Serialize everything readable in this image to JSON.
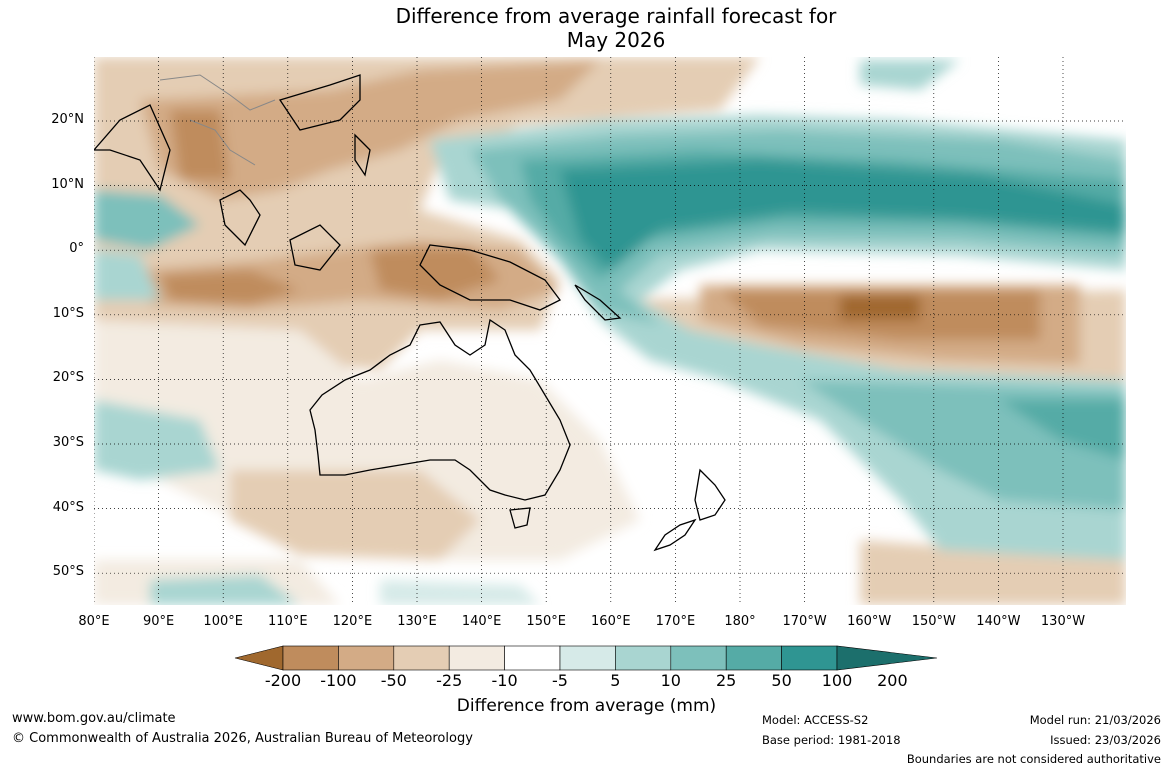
{
  "title_line1": "Difference from average rainfall forecast for",
  "title_line2": "May 2026",
  "lat_labels": [
    "20°N",
    "10°N",
    "0°",
    "10°S",
    "20°S",
    "30°S",
    "40°S",
    "50°S"
  ],
  "lon_labels": [
    "80°E",
    "90°E",
    "100°E",
    "110°E",
    "120°E",
    "130°E",
    "140°E",
    "150°E",
    "160°E",
    "170°E",
    "180°",
    "170°W",
    "160°W",
    "150°W",
    "140°W",
    "130°W"
  ],
  "colorbar": {
    "ticks": [
      "-200",
      "-100",
      "-50",
      "-25",
      "-10",
      "-5",
      "5",
      "10",
      "25",
      "50",
      "100",
      "200"
    ],
    "colors": [
      "#a0682e",
      "#bf8c5d",
      "#d3ab86",
      "#e4cdb4",
      "#f3ebe1",
      "#ffffff",
      "#d6eae8",
      "#a9d5d1",
      "#7dc0bb",
      "#55aba6",
      "#2f9592",
      "#1c6f6c"
    ],
    "label": "Difference from average (mm)"
  },
  "footer": {
    "website": "www.bom.gov.au/climate",
    "copyright": "© Commonwealth of Australia 2026, Australian Bureau of Meteorology",
    "model": "Model: ACCESS-S2",
    "base_period": "Base period: 1981-2018",
    "model_run": "Model run: 21/03/2026",
    "issued": "Issued: 23/03/2026",
    "boundaries": "Boundaries are not considered authoritative"
  }
}
